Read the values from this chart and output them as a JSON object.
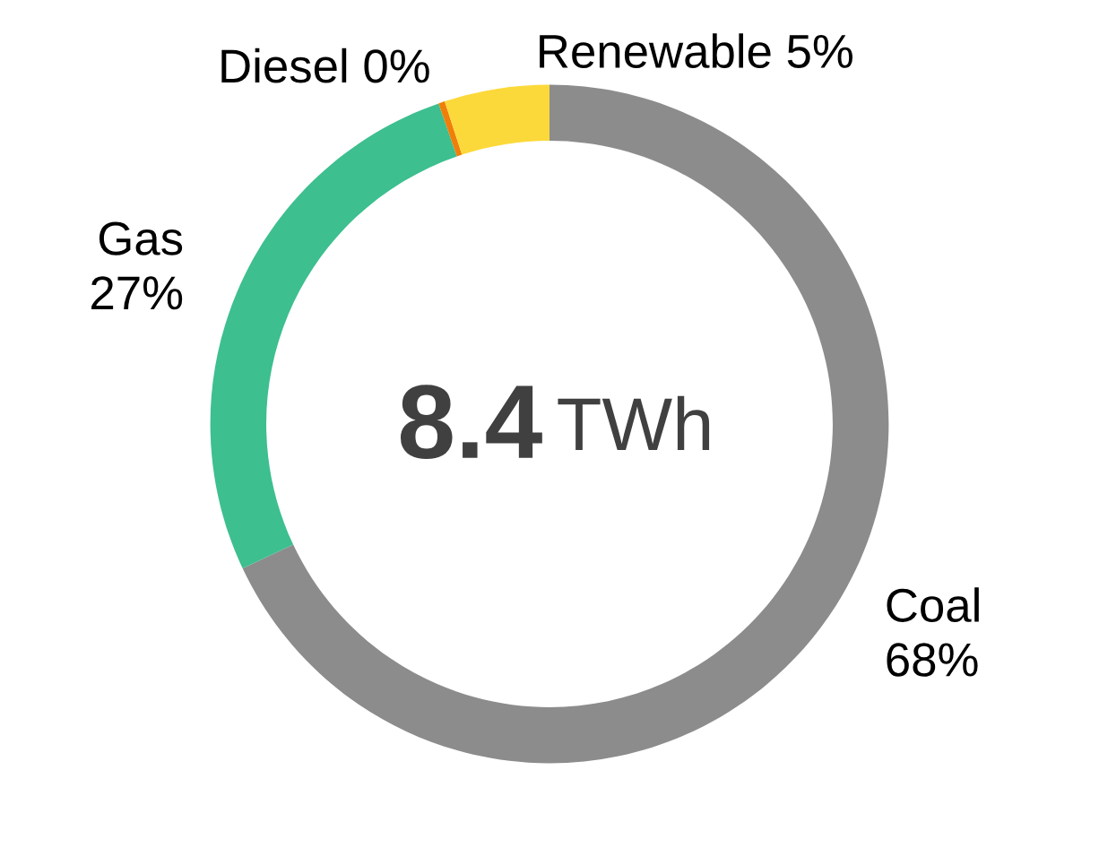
{
  "chart_data": {
    "type": "donut",
    "categories": [
      "Coal",
      "Gas",
      "Diesel",
      "Renewable"
    ],
    "values": [
      68,
      26.7,
      0.3,
      5
    ],
    "value_labels": [
      "68%",
      "27%",
      "0%",
      "5%"
    ],
    "colors": [
      "#8c8c8c",
      "#3dbf8f",
      "#f07f09",
      "#fcd93a"
    ],
    "annotations": [
      "8.4",
      "TWh"
    ],
    "legend": false
  }
}
